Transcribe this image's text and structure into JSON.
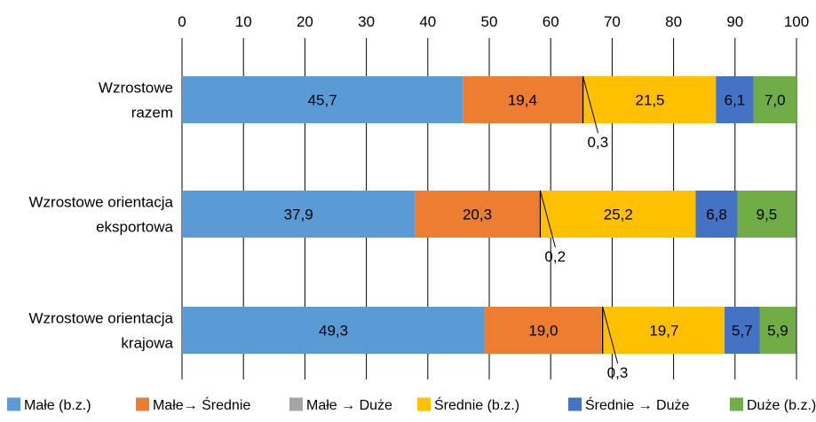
{
  "chart_data": {
    "type": "bar",
    "orientation": "horizontal",
    "stacked": true,
    "title": "",
    "xlabel": "",
    "ylabel": "",
    "xlim": [
      0,
      100
    ],
    "ticks": [
      0,
      10,
      20,
      30,
      40,
      50,
      60,
      70,
      80,
      90,
      100
    ],
    "grid": true,
    "legend_position": "bottom",
    "categories": [
      "Wzrostowe razem",
      "Wzrostowe orientacja eksportowa",
      "Wzrostowe orientacja krajowa"
    ],
    "category_lines": [
      [
        "Wzrostowe",
        "razem"
      ],
      [
        "Wzrostowe orientacja",
        "eksportowa"
      ],
      [
        "Wzrostowe orientacja",
        "krajowa"
      ]
    ],
    "series": [
      {
        "name": "Małe (b.z.)",
        "color": "#5b9bd5",
        "values": [
          45.7,
          37.9,
          49.3
        ],
        "labels": [
          "45,7",
          "37,9",
          "49,3"
        ]
      },
      {
        "name": "Małe→ Średnie",
        "color": "#ed7d31",
        "values": [
          19.4,
          20.3,
          19.0
        ],
        "labels": [
          "19,4",
          "20,3",
          "19,0"
        ]
      },
      {
        "name": "Małe → Duże",
        "color": "#a5a5a5",
        "values": [
          0.3,
          0.2,
          0.3
        ],
        "labels": [
          "0,3",
          "0,2",
          "0,3"
        ]
      },
      {
        "name": "Średnie (b.z.)",
        "color": "#ffc000",
        "values": [
          21.5,
          25.2,
          19.7
        ],
        "labels": [
          "21,5",
          "25,2",
          "19,7"
        ]
      },
      {
        "name": "Średnie → Duże",
        "color": "#4472c4",
        "values": [
          6.1,
          6.8,
          5.7
        ],
        "labels": [
          "6,1",
          "6,8",
          "5,7"
        ]
      },
      {
        "name": "Duże (b.z.)",
        "color": "#70ad47",
        "values": [
          7.0,
          9.5,
          5.9
        ],
        "labels": [
          "7,0",
          "9,5",
          "5,9"
        ]
      }
    ],
    "callout_series_index": 2
  }
}
